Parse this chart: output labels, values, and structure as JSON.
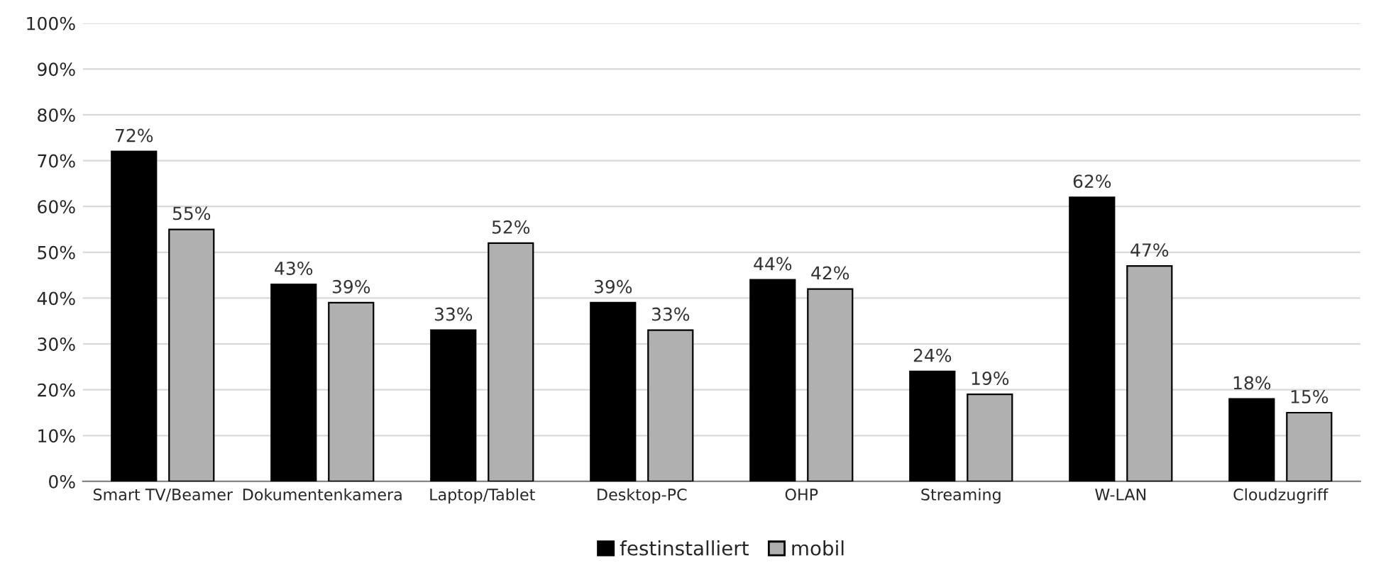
{
  "chart_data": {
    "type": "bar",
    "categories": [
      "Smart TV/Beamer",
      "Dokumentenkamera",
      "Laptop/Tablet",
      "Desktop-PC",
      "OHP",
      "Streaming",
      "W-LAN",
      "Cloudzugriff"
    ],
    "series": [
      {
        "name": "festinstalliert",
        "color": "#000000",
        "values": [
          72,
          43,
          33,
          39,
          44,
          24,
          62,
          18
        ],
        "value_labels": [
          "72%",
          "43%",
          "33%",
          "39%",
          "44%",
          "24%",
          "62%",
          "18%"
        ]
      },
      {
        "name": "mobil",
        "color": "#b0b0b0",
        "values": [
          55,
          39,
          52,
          33,
          42,
          19,
          47,
          15
        ],
        "value_labels": [
          "55%",
          "39%",
          "52%",
          "33%",
          "42%",
          "19%",
          "47%",
          "15%"
        ]
      }
    ],
    "ylim": [
      0,
      100
    ],
    "yticks": [
      {
        "value": 0,
        "label": "0%"
      },
      {
        "value": 10,
        "label": "10%"
      },
      {
        "value": 20,
        "label": "20%"
      },
      {
        "value": 30,
        "label": "30%"
      },
      {
        "value": 40,
        "label": "40%"
      },
      {
        "value": 50,
        "label": "50%"
      },
      {
        "value": 60,
        "label": "60%"
      },
      {
        "value": 70,
        "label": "70%"
      },
      {
        "value": 80,
        "label": "80%"
      },
      {
        "value": 90,
        "label": "90%"
      },
      {
        "value": 100,
        "label": "100%"
      }
    ],
    "grid": "y",
    "legend": "bottom"
  }
}
